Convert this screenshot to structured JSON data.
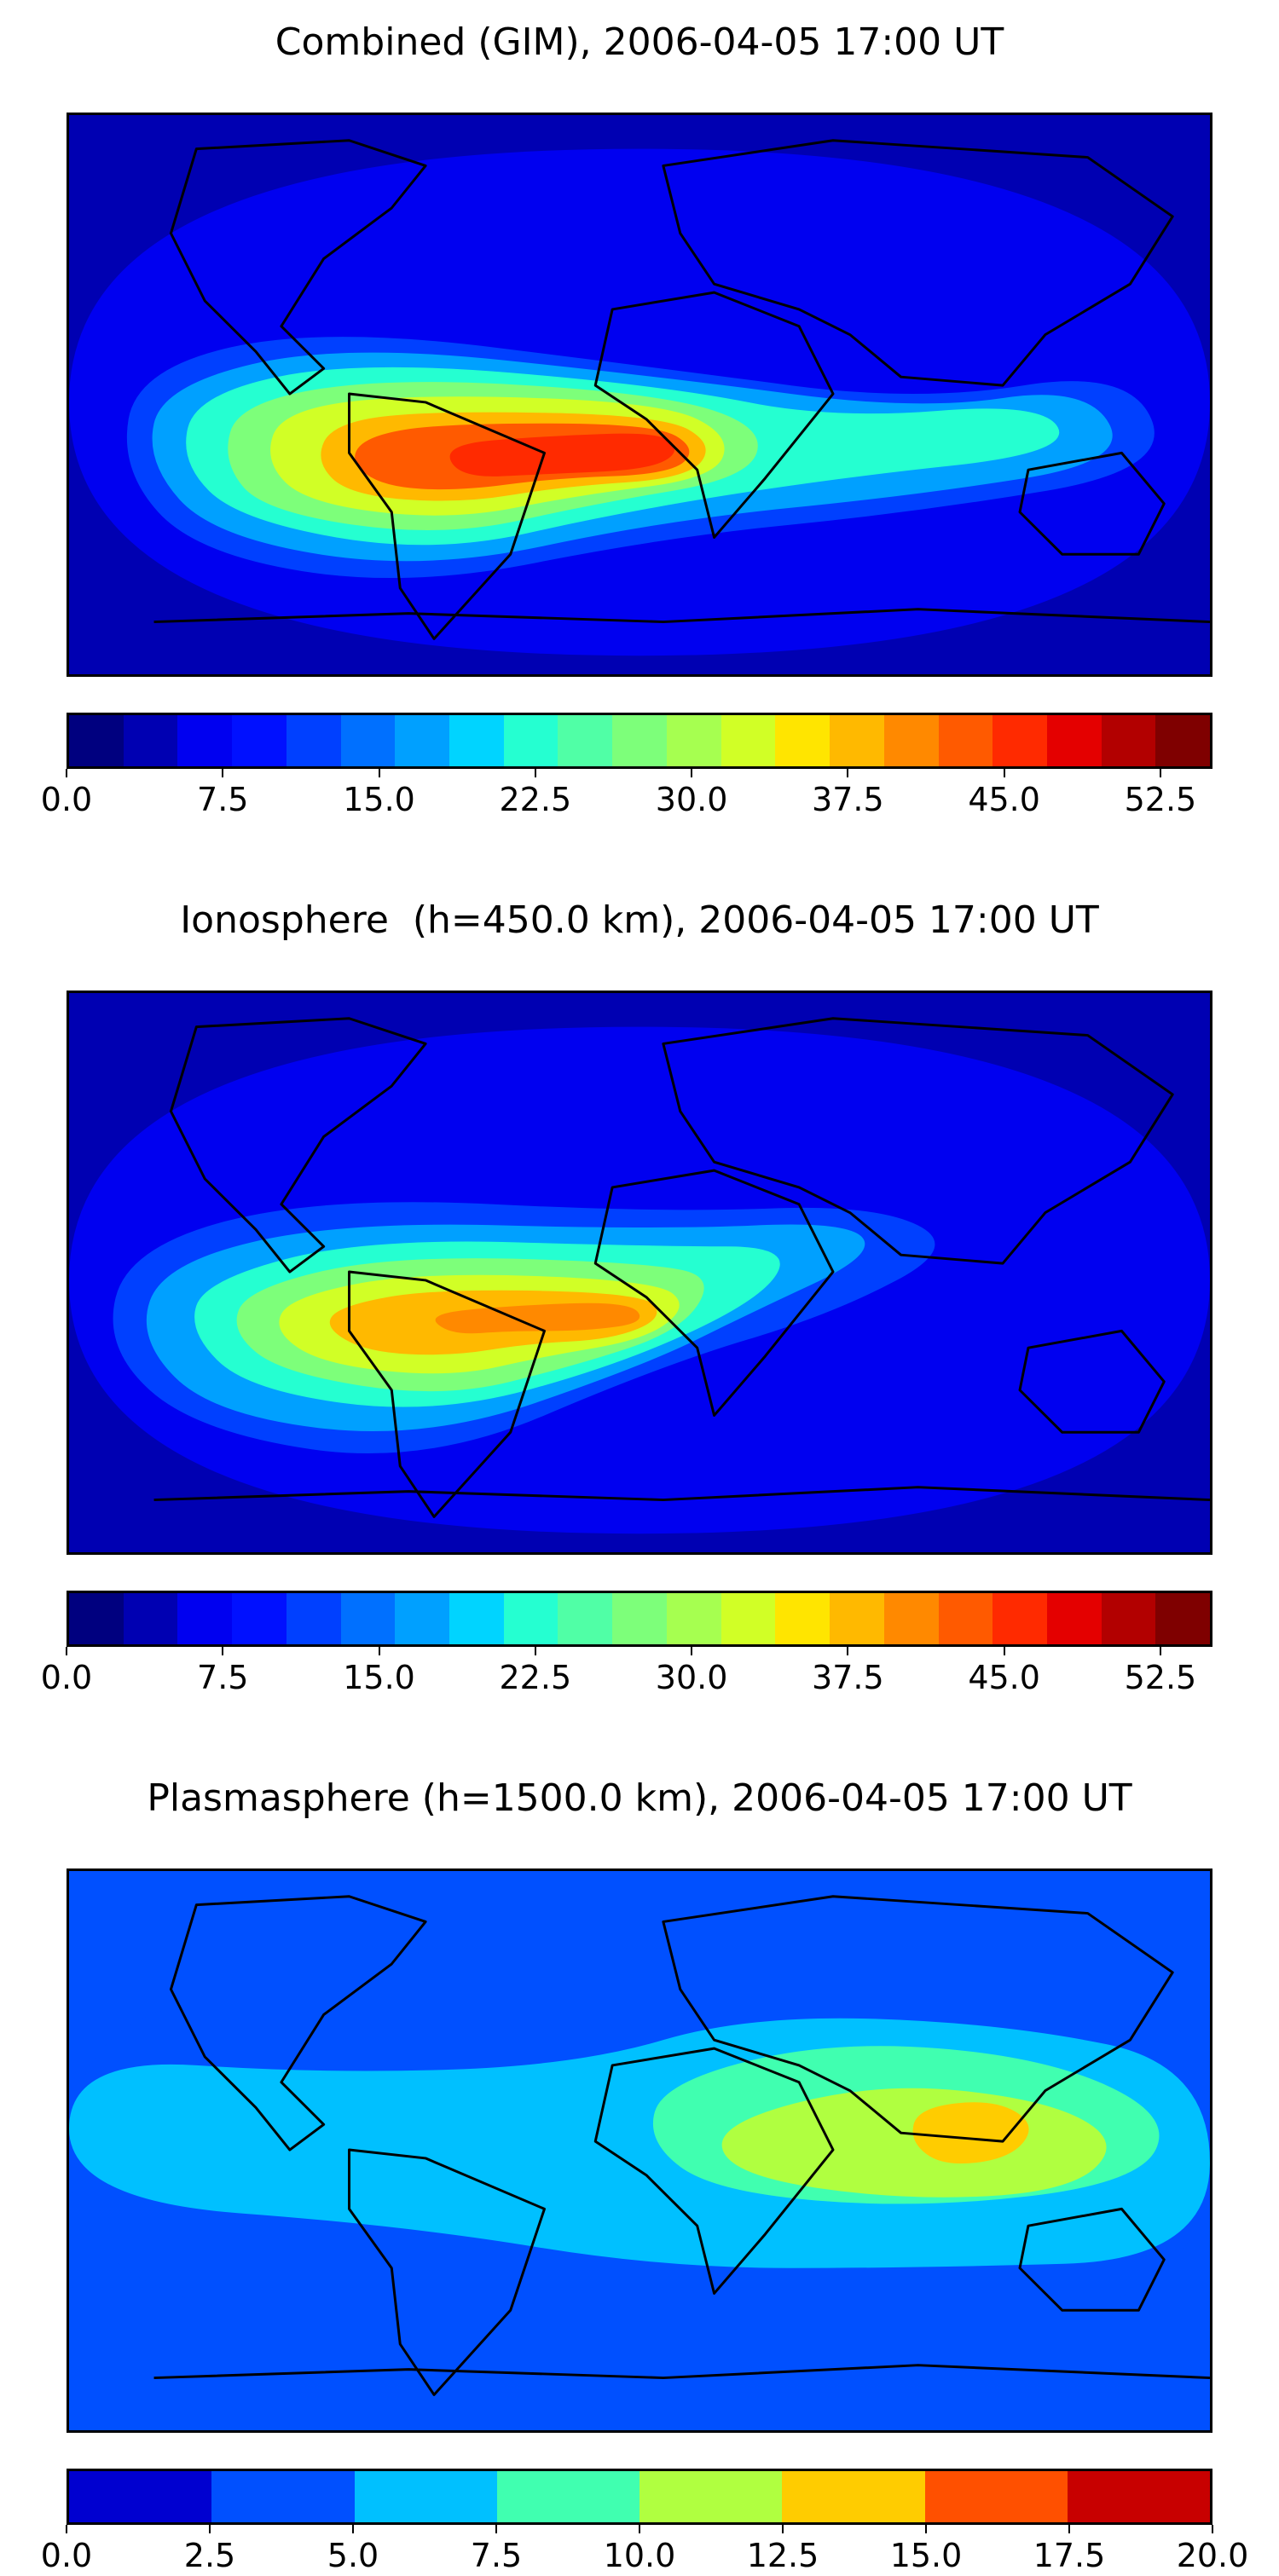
{
  "panels": [
    {
      "title": "Combined (GIM), 2006-04-05 17:00 UT",
      "field": "combined",
      "colorbar": {
        "vmin": 0.0,
        "vmax": 55.0,
        "colors": [
          "#00007f",
          "#0000b2",
          "#0000f0",
          "#0010ff",
          "#0040ff",
          "#0070ff",
          "#00a0ff",
          "#00d4ff",
          "#25ffd1",
          "#50ffa6",
          "#7dff7a",
          "#a6ff50",
          "#d1ff26",
          "#ffe500",
          "#ffb900",
          "#ff8900",
          "#ff5a00",
          "#ff2a00",
          "#e40000",
          "#b20000",
          "#7f0000"
        ],
        "tick_labels": [
          "0.0",
          "7.5",
          "15.0",
          "22.5",
          "30.0",
          "37.5",
          "45.0",
          "52.5"
        ],
        "tick_values": [
          0.0,
          7.5,
          15.0,
          22.5,
          30.0,
          37.5,
          45.0,
          52.5
        ]
      }
    },
    {
      "title": "Ionosphere  (h=450.0 km), 2006-04-05 17:00 UT",
      "field": "ionosphere",
      "colorbar": {
        "vmin": 0.0,
        "vmax": 55.0,
        "colors": [
          "#00007f",
          "#0000b2",
          "#0000f0",
          "#0010ff",
          "#0040ff",
          "#0070ff",
          "#00a0ff",
          "#00d4ff",
          "#25ffd1",
          "#50ffa6",
          "#7dff7a",
          "#a6ff50",
          "#d1ff26",
          "#ffe500",
          "#ffb900",
          "#ff8900",
          "#ff5a00",
          "#ff2a00",
          "#e40000",
          "#b20000",
          "#7f0000"
        ],
        "tick_labels": [
          "0.0",
          "7.5",
          "15.0",
          "22.5",
          "30.0",
          "37.5",
          "45.0",
          "52.5"
        ],
        "tick_values": [
          0.0,
          7.5,
          15.0,
          22.5,
          30.0,
          37.5,
          45.0,
          52.5
        ]
      }
    },
    {
      "title": "Plasmasphere (h=1500.0 km), 2006-04-05 17:00 UT",
      "field": "plasmasphere",
      "colorbar": {
        "vmin": 0.0,
        "vmax": 20.0,
        "colors": [
          "#0000d0",
          "#0050ff",
          "#00c0ff",
          "#40ffb0",
          "#b0ff40",
          "#ffcc00",
          "#ff5000",
          "#c80000"
        ],
        "tick_labels": [
          "0.0",
          "2.5",
          "5.0",
          "7.5",
          "10.0",
          "12.5",
          "15.0",
          "17.5",
          "20.0"
        ],
        "tick_values": [
          0.0,
          2.5,
          5.0,
          7.5,
          10.0,
          12.5,
          15.0,
          17.5,
          20.0
        ]
      }
    }
  ]
}
